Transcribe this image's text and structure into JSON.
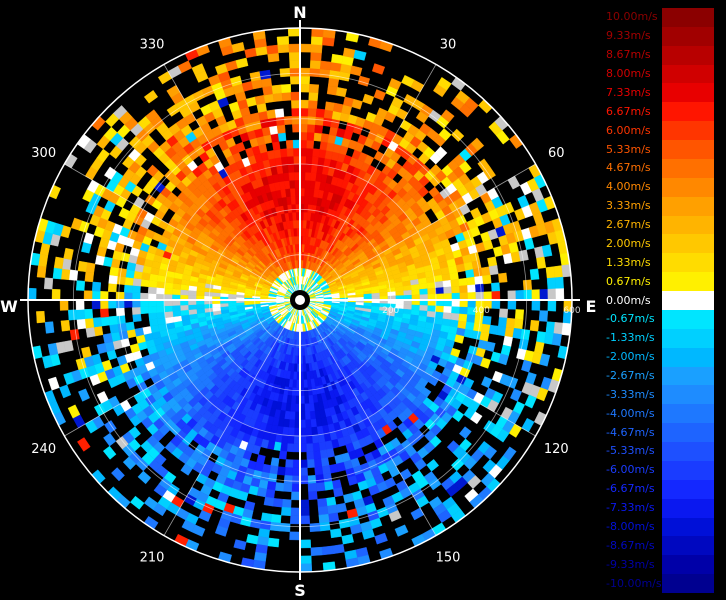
{
  "chart_data": {
    "type": "polar-heatmap",
    "description_units": "radial velocity (m/s)",
    "cardinals": {
      "north": "N",
      "south": "S",
      "east": "E",
      "west": "W"
    },
    "angle_labels": [
      "30",
      "60",
      "120",
      "150",
      "210",
      "240",
      "300",
      "330"
    ],
    "angle_values": [
      30,
      60,
      120,
      150,
      210,
      240,
      300,
      330
    ],
    "range_labels": [
      "200",
      "400",
      "600"
    ],
    "range_values": [
      200,
      400,
      600
    ],
    "range_max": 600,
    "range_rings": [
      100,
      200,
      300,
      400,
      500,
      600
    ],
    "colorbar": {
      "labels": [
        "10.00m/s",
        "9.33m/s",
        "8.67m/s",
        "8.00m/s",
        "7.33m/s",
        "6.67m/s",
        "6.00m/s",
        "5.33m/s",
        "4.67m/s",
        "4.00m/s",
        "3.33m/s",
        "2.67m/s",
        "2.00m/s",
        "1.33m/s",
        "0.67m/s",
        "0.00m/s",
        "-0.67m/s",
        "-1.33m/s",
        "-2.00m/s",
        "-2.67m/s",
        "-3.33m/s",
        "-4.00m/s",
        "-4.67m/s",
        "-5.33m/s",
        "-6.00m/s",
        "-6.67m/s",
        "-7.33m/s",
        "-8.00m/s",
        "-8.67m/s",
        "-9.33m/s",
        "-10.00m/s"
      ],
      "values": [
        10,
        9.33,
        8.67,
        8,
        7.33,
        6.67,
        6,
        5.33,
        4.67,
        4,
        3.33,
        2.67,
        2,
        1.33,
        0.67,
        0,
        -0.67,
        -1.33,
        -2,
        -2.67,
        -3.33,
        -4,
        -4.67,
        -5.33,
        -6,
        -6.67,
        -7.33,
        -8,
        -8.67,
        -9.33,
        -10
      ],
      "colors": [
        "#8b0000",
        "#a10000",
        "#b80000",
        "#d00000",
        "#e80000",
        "#ff1500",
        "#ff3500",
        "#ff5500",
        "#ff7000",
        "#ff8800",
        "#ffa000",
        "#ffb400",
        "#ffc800",
        "#ffdc00",
        "#fff000",
        "#ffffff",
        "#00e5ff",
        "#00d0ff",
        "#00b8ff",
        "#1aa0ff",
        "#1e8cff",
        "#1e78ff",
        "#1e64ff",
        "#1e50ff",
        "#1a3cff",
        "#1428ff",
        "#0a18f0",
        "#0010d8",
        "#0008c0",
        "#0000a8",
        "#000090"
      ]
    }
  }
}
